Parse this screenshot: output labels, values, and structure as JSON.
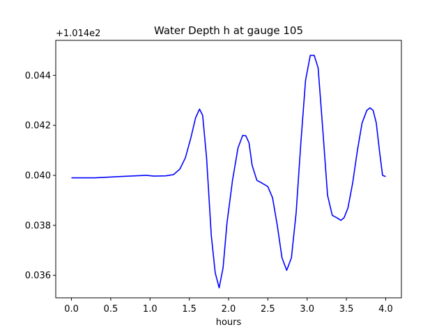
{
  "chart_data": {
    "type": "line",
    "title": "Water Depth h at gauge 105",
    "xlabel": "hours",
    "ylabel": "",
    "offset_label": "+1.014e2",
    "xlim": [
      -0.2,
      4.2
    ],
    "ylim": [
      0.0351,
      0.0454
    ],
    "xticks": [
      0.0,
      0.5,
      1.0,
      1.5,
      2.0,
      2.5,
      3.0,
      3.5,
      4.0
    ],
    "xtick_labels": [
      "0.0",
      "0.5",
      "1.0",
      "1.5",
      "2.0",
      "2.5",
      "3.0",
      "3.5",
      "4.0"
    ],
    "yticks": [
      0.036,
      0.038,
      0.04,
      0.042,
      0.044
    ],
    "ytick_labels": [
      "0.036",
      "0.038",
      "0.040",
      "0.042",
      "0.044"
    ],
    "grid": false,
    "series": [
      {
        "color": "#0000ff",
        "x": [
          0.0,
          0.3,
          0.6,
          0.95,
          1.05,
          1.2,
          1.3,
          1.38,
          1.45,
          1.52,
          1.58,
          1.63,
          1.67,
          1.72,
          1.78,
          1.83,
          1.88,
          1.93,
          1.98,
          2.05,
          2.12,
          2.18,
          2.22,
          2.26,
          2.3,
          2.36,
          2.42,
          2.5,
          2.56,
          2.62,
          2.68,
          2.74,
          2.8,
          2.86,
          2.92,
          2.98,
          3.04,
          3.09,
          3.14,
          3.2,
          3.26,
          3.32,
          3.38,
          3.43,
          3.47,
          3.52,
          3.58,
          3.64,
          3.7,
          3.76,
          3.8,
          3.84,
          3.88,
          3.92,
          3.96,
          4.0
        ],
        "y": [
          0.0399,
          0.0399,
          0.03995,
          0.04,
          0.03997,
          0.03998,
          0.04003,
          0.04025,
          0.0407,
          0.0415,
          0.0423,
          0.04265,
          0.0424,
          0.0407,
          0.0376,
          0.0361,
          0.0355,
          0.0363,
          0.0381,
          0.0398,
          0.0411,
          0.0416,
          0.04158,
          0.0413,
          0.0404,
          0.0398,
          0.0397,
          0.03955,
          0.0391,
          0.038,
          0.0367,
          0.0362,
          0.0367,
          0.0385,
          0.0413,
          0.0438,
          0.0448,
          0.0448,
          0.0443,
          0.0418,
          0.0392,
          0.0384,
          0.0383,
          0.0382,
          0.0383,
          0.0387,
          0.0397,
          0.041,
          0.0421,
          0.0426,
          0.0427,
          0.0426,
          0.0421,
          0.041,
          0.04,
          0.03995
        ]
      }
    ]
  }
}
